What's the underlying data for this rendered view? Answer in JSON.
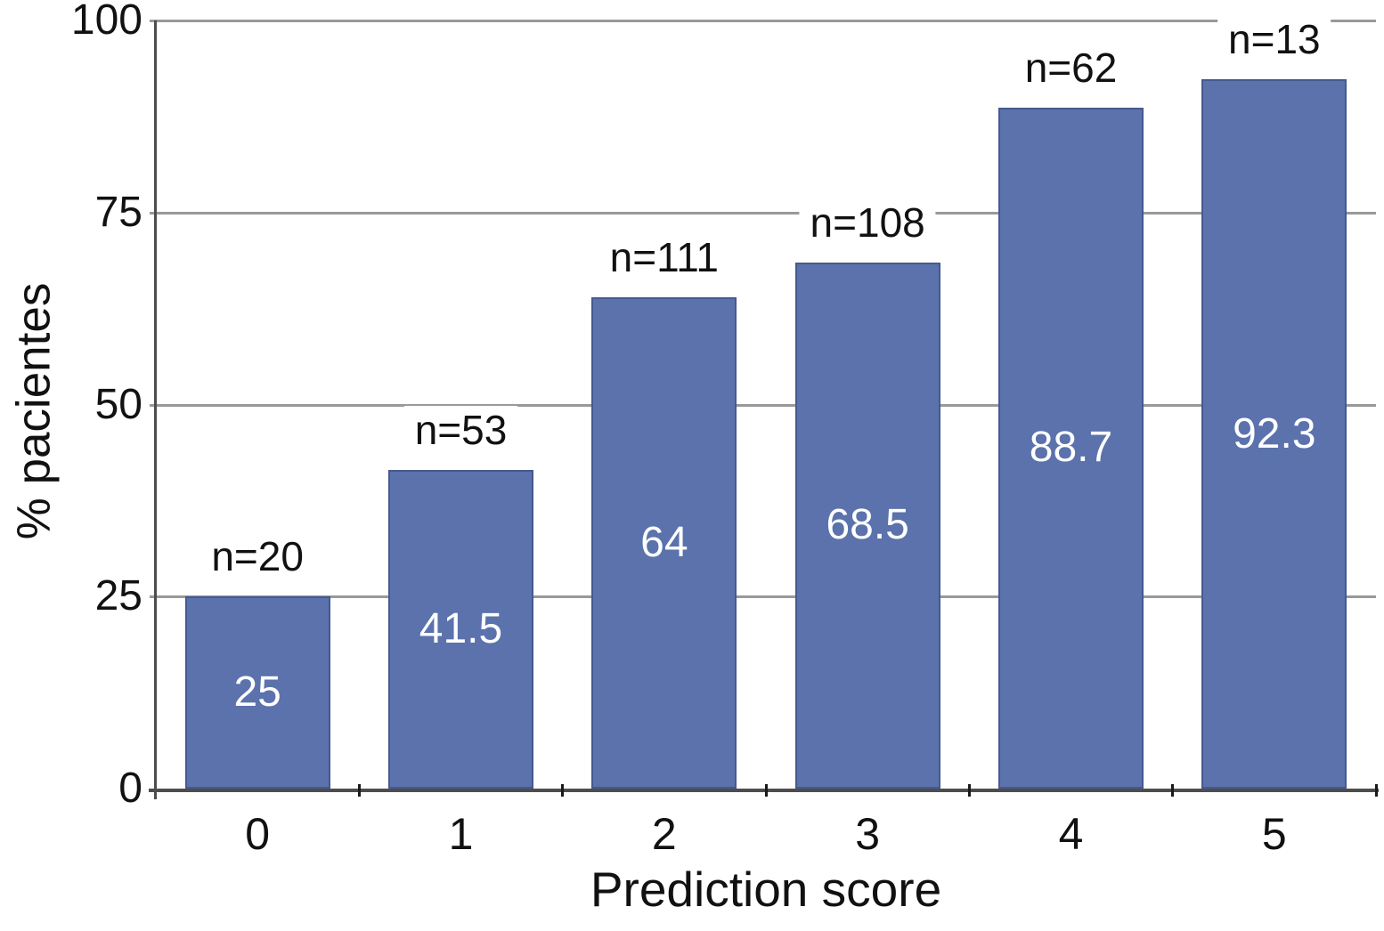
{
  "chart_data": {
    "type": "bar",
    "categories": [
      "0",
      "1",
      "2",
      "3",
      "4",
      "5"
    ],
    "values": [
      25,
      41.5,
      64,
      68.5,
      88.7,
      92.3
    ],
    "bar_value_labels": [
      "25",
      "41.5",
      "64",
      "68.5",
      "88.7",
      "92.3"
    ],
    "n_labels": [
      "n=20",
      "n=53",
      "n=111",
      "n=108",
      "n=62",
      "n=13"
    ],
    "title": "",
    "xlabel": "Prediction score",
    "ylabel": "% pacientes",
    "ylim": [
      0,
      100
    ],
    "yticks": [
      0,
      25,
      50,
      75,
      100
    ],
    "grid": "horizontal-only",
    "legend": "none",
    "colors": {
      "bar_fill": "#5b72ad",
      "bar_border": "#46598f",
      "gridline": "#999999",
      "axis": "#4d4d4d",
      "tick": "#1a1a1a",
      "text": "#111111",
      "bar_label_text": "#ffffff",
      "background": "#ffffff"
    }
  }
}
